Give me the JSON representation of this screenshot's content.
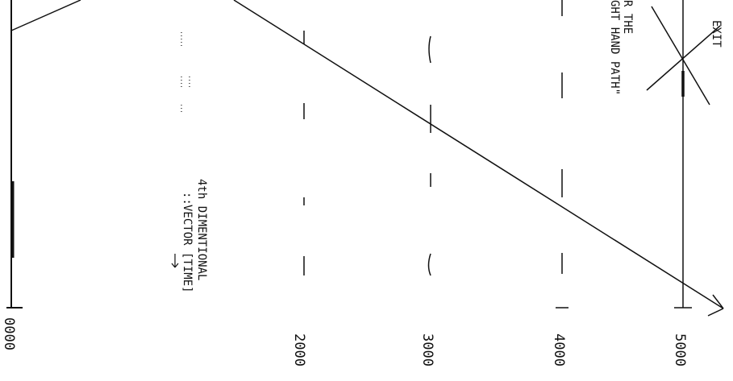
{
  "diagram": {
    "axis_labels": [
      "0000",
      "2000",
      "3000",
      "4000",
      "5000"
    ],
    "dimension_label": {
      "line1": "4th DIMENTIONAL",
      "line2": "VECTOR [TIME]"
    },
    "path_label": {
      "line1": "R THE",
      "line2": "GHT HAND PATH\""
    },
    "exit_label": "EXIT"
  },
  "colors": {
    "ink": "#111111",
    "paper": "#ffffff"
  }
}
